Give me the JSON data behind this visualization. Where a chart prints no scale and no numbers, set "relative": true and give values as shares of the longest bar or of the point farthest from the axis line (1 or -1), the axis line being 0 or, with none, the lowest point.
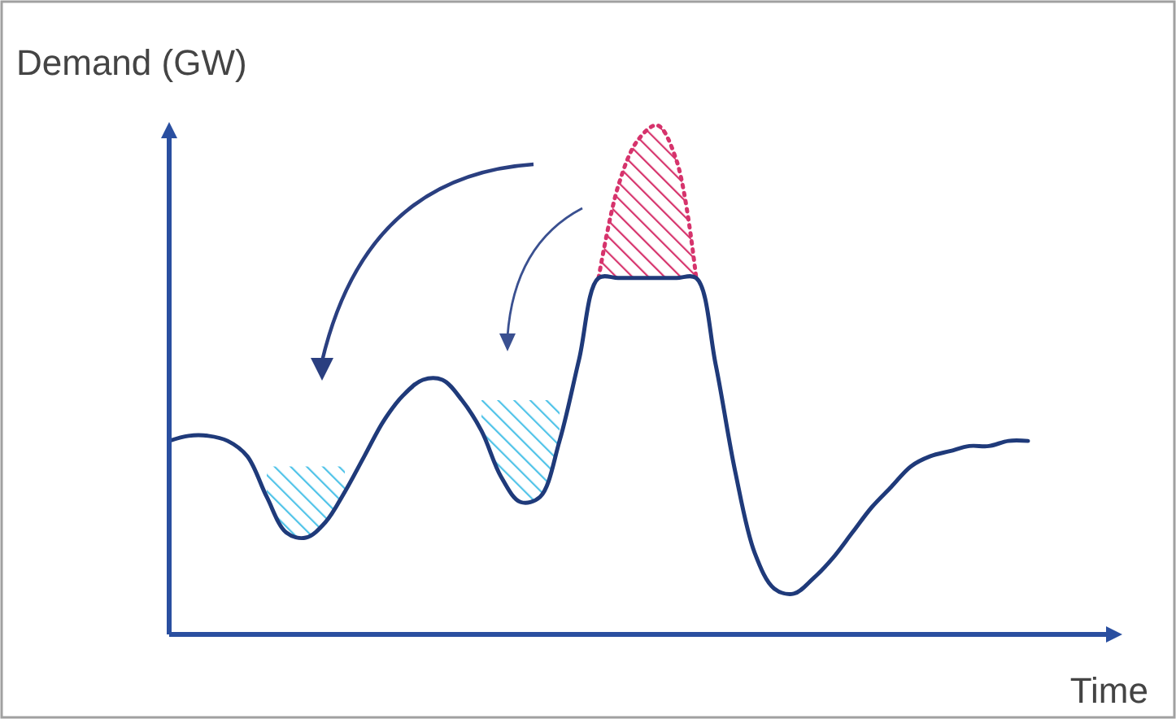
{
  "chart_data": {
    "type": "line",
    "relative": true,
    "xlabel": "Time",
    "ylabel": "Demand (GW)",
    "categories": [
      null,
      null,
      null,
      null,
      null,
      null,
      null,
      null,
      null,
      null,
      null,
      null,
      null,
      null,
      null,
      null,
      null,
      null,
      null,
      null,
      null,
      null,
      null,
      null,
      null,
      null,
      null,
      null,
      null,
      null,
      null,
      null,
      null,
      null,
      null,
      null,
      null,
      null,
      null,
      null,
      null,
      null,
      null,
      null,
      null
    ],
    "series": [
      {
        "color": "#1f3a7a",
        "values": [
          0.38,
          0.39,
          0.39,
          0.38,
          0.35,
          0.27,
          0.2,
          0.19,
          0.22,
          0.28,
          0.35,
          0.42,
          0.47,
          0.5,
          0.5,
          0.46,
          0.4,
          0.31,
          0.26,
          0.27,
          0.38,
          0.54,
          0.7,
          0.7,
          0.7,
          0.7,
          0.7,
          0.7,
          0.53,
          0.32,
          0.16,
          0.09,
          0.08,
          0.11,
          0.15,
          0.2,
          0.25,
          0.29,
          0.33,
          0.35,
          0.36,
          0.37,
          0.37,
          0.38,
          0.38
        ]
      },
      {
        "type": "area",
        "color": "#d6336c",
        "line_style": "dotted",
        "values": [
          null,
          null,
          null,
          null,
          null,
          null,
          null,
          null,
          null,
          null,
          null,
          null,
          null,
          null,
          null,
          null,
          null,
          null,
          null,
          null,
          null,
          null,
          0.7,
          0.88,
          0.97,
          1.0,
          0.93,
          0.7,
          null,
          null,
          null,
          null,
          null,
          null,
          null,
          null,
          null,
          null,
          null,
          null,
          null,
          null,
          null,
          null,
          null
        ]
      },
      {
        "type": "area",
        "color": "#4fc3e8",
        "values": [
          null,
          null,
          null,
          null,
          null,
          0.33,
          0.33,
          0.33,
          0.33,
          0.33,
          null,
          null,
          null,
          null,
          null,
          null,
          null,
          null,
          null,
          null,
          null,
          null,
          null,
          null,
          null,
          null,
          null,
          null,
          null,
          null,
          null,
          null,
          null,
          null,
          null,
          null,
          null,
          null,
          null,
          null,
          null,
          null,
          null,
          null,
          null
        ]
      },
      {
        "type": "area",
        "color": "#4fc3e8",
        "values": [
          null,
          null,
          null,
          null,
          null,
          null,
          null,
          null,
          null,
          null,
          null,
          null,
          null,
          null,
          null,
          null,
          0.46,
          0.46,
          0.46,
          0.46,
          0.46,
          null,
          null,
          null,
          null,
          null,
          null,
          null,
          null,
          null,
          null,
          null,
          null,
          null,
          null,
          null,
          null,
          null,
          null,
          null,
          null,
          null,
          null,
          null,
          null
        ]
      }
    ]
  }
}
